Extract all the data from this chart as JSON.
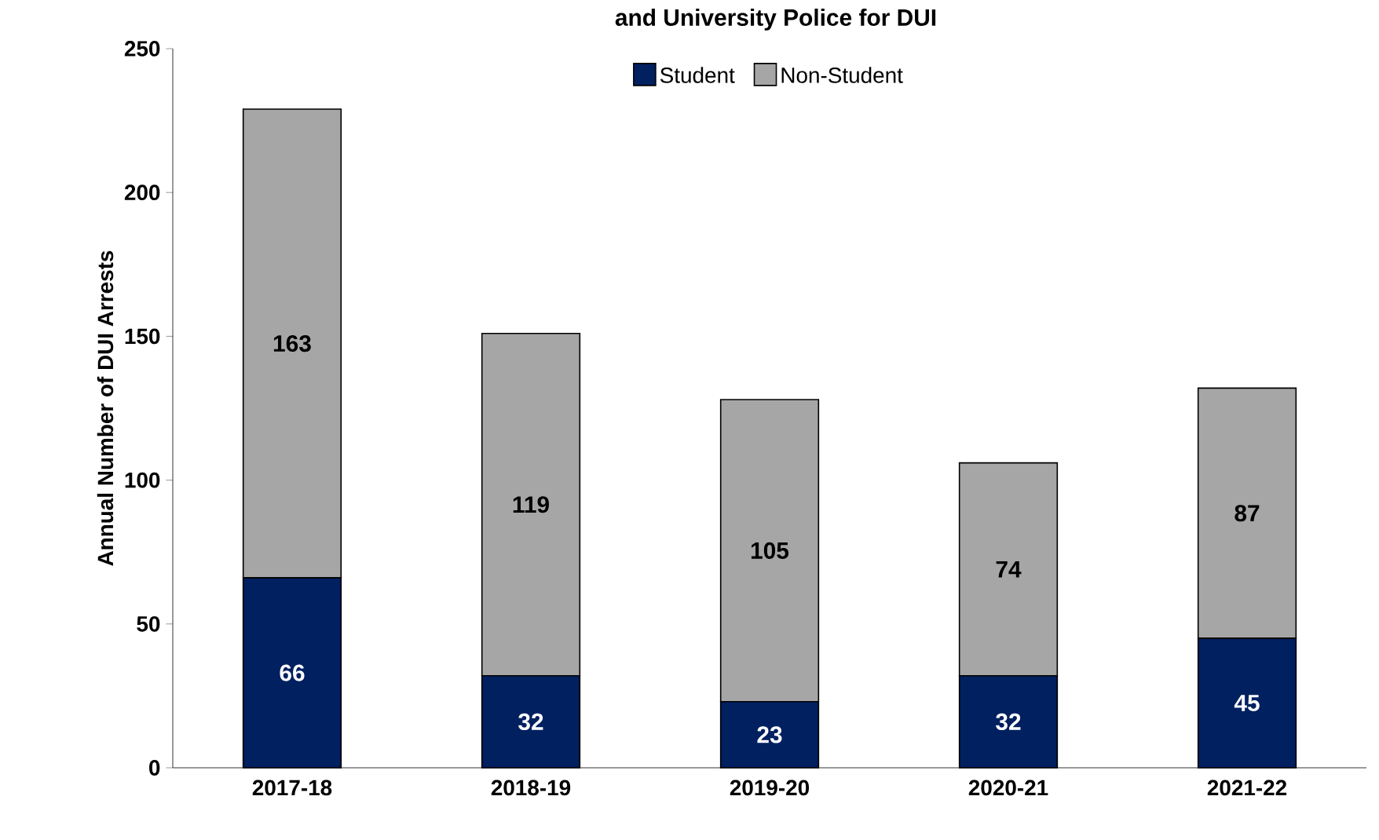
{
  "chart_data": {
    "type": "bar",
    "stacked": true,
    "title": "and University Police for DUI",
    "ylabel": "Annual Number of DUI Arrests",
    "categories": [
      "2017-18",
      "2018-19",
      "2019-20",
      "2020-21",
      "2021-22"
    ],
    "series": [
      {
        "name": "Student",
        "color": "#002060",
        "values": [
          66,
          32,
          23,
          32,
          45
        ]
      },
      {
        "name": "Non-Student",
        "color": "#a6a6a6",
        "values": [
          163,
          119,
          105,
          74,
          87
        ]
      }
    ],
    "ylim": [
      0,
      250
    ],
    "yticks": [
      0,
      50,
      100,
      150,
      200,
      250
    ],
    "data_labels": true,
    "legend": "top",
    "grid": false
  }
}
